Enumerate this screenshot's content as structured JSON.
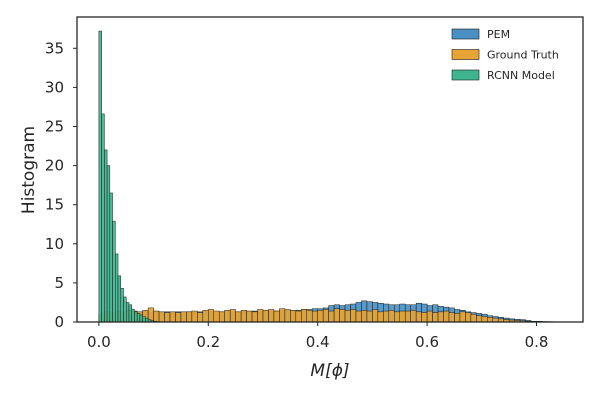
{
  "chart_data": {
    "type": "bar",
    "xlabel": "M[ϕ]",
    "ylabel": "Histogram",
    "xlim": [
      -0.04,
      0.885
    ],
    "ylim": [
      0,
      39
    ],
    "xticks": [
      0.0,
      0.2,
      0.4,
      0.6,
      0.8
    ],
    "xtick_labels": [
      "0.0",
      "0.2",
      "0.4",
      "0.6",
      "0.8"
    ],
    "yticks": [
      0,
      5,
      10,
      15,
      20,
      25,
      30,
      35
    ],
    "ytick_labels": [
      "0",
      "5",
      "10",
      "15",
      "20",
      "25",
      "30",
      "35"
    ],
    "grid": false,
    "legend_position": "top-right",
    "series": [
      {
        "name": "PEM",
        "color": "#4a90c4",
        "bin_width": 0.01,
        "bins": [
          [
            0.0,
            0.4
          ],
          [
            0.01,
            0.8
          ],
          [
            0.02,
            1.0
          ],
          [
            0.03,
            1.1
          ],
          [
            0.04,
            1.2
          ],
          [
            0.05,
            1.2
          ],
          [
            0.06,
            1.2
          ],
          [
            0.07,
            1.2
          ],
          [
            0.08,
            1.3
          ],
          [
            0.09,
            1.2
          ],
          [
            0.1,
            1.3
          ],
          [
            0.11,
            1.2
          ],
          [
            0.12,
            1.3
          ],
          [
            0.13,
            1.2
          ],
          [
            0.14,
            1.3
          ],
          [
            0.15,
            1.2
          ],
          [
            0.16,
            1.3
          ],
          [
            0.17,
            1.2
          ],
          [
            0.18,
            1.3
          ],
          [
            0.19,
            1.3
          ],
          [
            0.2,
            1.3
          ],
          [
            0.21,
            1.2
          ],
          [
            0.22,
            1.3
          ],
          [
            0.23,
            1.3
          ],
          [
            0.24,
            1.3
          ],
          [
            0.25,
            1.3
          ],
          [
            0.26,
            1.3
          ],
          [
            0.27,
            1.3
          ],
          [
            0.28,
            1.4
          ],
          [
            0.29,
            1.3
          ],
          [
            0.3,
            1.4
          ],
          [
            0.31,
            1.4
          ],
          [
            0.32,
            1.4
          ],
          [
            0.33,
            1.5
          ],
          [
            0.34,
            1.5
          ],
          [
            0.35,
            1.5
          ],
          [
            0.36,
            1.5
          ],
          [
            0.37,
            1.6
          ],
          [
            0.38,
            1.6
          ],
          [
            0.39,
            1.7
          ],
          [
            0.4,
            1.7
          ],
          [
            0.41,
            1.8
          ],
          [
            0.42,
            2.1
          ],
          [
            0.43,
            2.2
          ],
          [
            0.44,
            2.1
          ],
          [
            0.45,
            2.2
          ],
          [
            0.46,
            2.3
          ],
          [
            0.47,
            2.5
          ],
          [
            0.48,
            2.7
          ],
          [
            0.49,
            2.6
          ],
          [
            0.5,
            2.5
          ],
          [
            0.51,
            2.4
          ],
          [
            0.52,
            2.3
          ],
          [
            0.53,
            2.2
          ],
          [
            0.54,
            2.2
          ],
          [
            0.55,
            2.3
          ],
          [
            0.56,
            2.2
          ],
          [
            0.57,
            2.2
          ],
          [
            0.58,
            2.4
          ],
          [
            0.59,
            2.3
          ],
          [
            0.6,
            2.1
          ],
          [
            0.61,
            2.2
          ],
          [
            0.62,
            2.0
          ],
          [
            0.63,
            1.9
          ],
          [
            0.64,
            1.8
          ],
          [
            0.65,
            1.6
          ],
          [
            0.66,
            1.5
          ],
          [
            0.67,
            1.3
          ],
          [
            0.68,
            1.2
          ],
          [
            0.69,
            1.1
          ],
          [
            0.7,
            1.0
          ],
          [
            0.71,
            0.8
          ],
          [
            0.72,
            0.7
          ],
          [
            0.73,
            0.6
          ],
          [
            0.74,
            0.5
          ],
          [
            0.75,
            0.4
          ],
          [
            0.76,
            0.35
          ],
          [
            0.77,
            0.3
          ],
          [
            0.78,
            0.2
          ],
          [
            0.79,
            0.1
          ],
          [
            0.8,
            0.1
          ],
          [
            0.81,
            0.05
          ],
          [
            0.82,
            0.05
          ]
        ]
      },
      {
        "name": "Ground Truth",
        "color": "#e6a434",
        "bin_width": 0.01,
        "bins": [
          [
            0.0,
            1.0
          ],
          [
            0.01,
            1.3
          ],
          [
            0.02,
            1.2
          ],
          [
            0.03,
            1.4
          ],
          [
            0.04,
            1.3
          ],
          [
            0.05,
            1.5
          ],
          [
            0.06,
            1.4
          ],
          [
            0.07,
            1.3
          ],
          [
            0.08,
            1.5
          ],
          [
            0.09,
            1.8
          ],
          [
            0.1,
            1.4
          ],
          [
            0.11,
            1.3
          ],
          [
            0.12,
            1.2
          ],
          [
            0.13,
            1.3
          ],
          [
            0.14,
            1.2
          ],
          [
            0.15,
            1.3
          ],
          [
            0.16,
            1.3
          ],
          [
            0.17,
            1.4
          ],
          [
            0.18,
            1.2
          ],
          [
            0.19,
            1.5
          ],
          [
            0.2,
            1.6
          ],
          [
            0.21,
            1.4
          ],
          [
            0.22,
            1.3
          ],
          [
            0.23,
            1.5
          ],
          [
            0.24,
            1.6
          ],
          [
            0.25,
            1.3
          ],
          [
            0.26,
            1.5
          ],
          [
            0.27,
            1.4
          ],
          [
            0.28,
            1.3
          ],
          [
            0.29,
            1.6
          ],
          [
            0.3,
            1.5
          ],
          [
            0.31,
            1.6
          ],
          [
            0.32,
            1.4
          ],
          [
            0.33,
            1.7
          ],
          [
            0.34,
            1.6
          ],
          [
            0.35,
            1.5
          ],
          [
            0.36,
            1.4
          ],
          [
            0.37,
            1.6
          ],
          [
            0.38,
            1.5
          ],
          [
            0.39,
            1.4
          ],
          [
            0.4,
            1.5
          ],
          [
            0.41,
            1.6
          ],
          [
            0.42,
            1.4
          ],
          [
            0.43,
            1.7
          ],
          [
            0.44,
            1.6
          ],
          [
            0.45,
            1.5
          ],
          [
            0.46,
            1.6
          ],
          [
            0.47,
            1.4
          ],
          [
            0.48,
            1.5
          ],
          [
            0.49,
            1.4
          ],
          [
            0.5,
            1.6
          ],
          [
            0.51,
            1.3
          ],
          [
            0.52,
            1.4
          ],
          [
            0.53,
            1.5
          ],
          [
            0.54,
            1.3
          ],
          [
            0.55,
            1.4
          ],
          [
            0.56,
            1.4
          ],
          [
            0.57,
            1.5
          ],
          [
            0.58,
            1.3
          ],
          [
            0.59,
            1.2
          ],
          [
            0.6,
            1.4
          ],
          [
            0.61,
            1.2
          ],
          [
            0.62,
            1.3
          ],
          [
            0.63,
            1.4
          ],
          [
            0.64,
            1.2
          ],
          [
            0.65,
            1.1
          ],
          [
            0.66,
            1.3
          ],
          [
            0.67,
            1.2
          ],
          [
            0.68,
            1.0
          ],
          [
            0.69,
            0.8
          ],
          [
            0.7,
            0.7
          ],
          [
            0.71,
            0.6
          ],
          [
            0.72,
            0.5
          ],
          [
            0.73,
            0.4
          ],
          [
            0.74,
            0.3
          ],
          [
            0.75,
            0.25
          ],
          [
            0.76,
            0.2
          ],
          [
            0.77,
            0.15
          ],
          [
            0.78,
            0.1
          ],
          [
            0.79,
            0.05
          ],
          [
            0.8,
            0.05
          ],
          [
            0.81,
            0.05
          ],
          [
            0.82,
            0.02
          ]
        ]
      },
      {
        "name": "RCNN Model",
        "color": "#3fb58f",
        "bin_width": 0.005,
        "bins": [
          [
            0.0,
            37.2
          ],
          [
            0.005,
            26.6
          ],
          [
            0.01,
            22.0
          ],
          [
            0.015,
            20.0
          ],
          [
            0.02,
            16.5
          ],
          [
            0.025,
            12.9
          ],
          [
            0.03,
            8.7
          ],
          [
            0.035,
            5.9
          ],
          [
            0.04,
            4.3
          ],
          [
            0.045,
            3.2
          ],
          [
            0.05,
            2.5
          ],
          [
            0.055,
            2.2
          ],
          [
            0.06,
            1.6
          ],
          [
            0.065,
            1.3
          ],
          [
            0.07,
            1.1
          ],
          [
            0.075,
            0.9
          ],
          [
            0.08,
            0.7
          ],
          [
            0.085,
            0.5
          ],
          [
            0.09,
            0.3
          ],
          [
            0.095,
            0.2
          ],
          [
            0.1,
            0.1
          ],
          [
            0.105,
            0.05
          ]
        ]
      }
    ]
  }
}
